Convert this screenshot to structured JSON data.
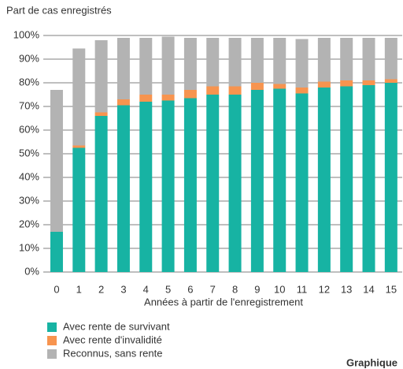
{
  "chart_data": {
    "type": "stacked_bar",
    "y_label": "Part de cas enregistrés",
    "x_label": "Années à partir de l'enregistrement",
    "caption": "Graphique",
    "categories": [
      "0",
      "1",
      "2",
      "3",
      "4",
      "5",
      "6",
      "7",
      "8",
      "9",
      "10",
      "11",
      "12",
      "13",
      "14",
      "15"
    ],
    "series": [
      {
        "name": "Avec rente de survivant",
        "color": "#17b3a3",
        "values": [
          17,
          52.5,
          66,
          70.5,
          72,
          72.5,
          73.5,
          75,
          75,
          77,
          77.5,
          75.5,
          78,
          78.5,
          79,
          80
        ]
      },
      {
        "name": "Avec rente d'invalidité",
        "color": "#f7944f",
        "values": [
          0,
          1,
          1.5,
          2.5,
          3,
          2.5,
          3.5,
          3.5,
          3.5,
          3,
          2,
          2.5,
          2.5,
          2.5,
          2,
          1.5
        ]
      },
      {
        "name": "Reconnus, sans rente",
        "color": "#b3b3b3",
        "values": [
          60,
          41,
          30.5,
          26,
          24,
          24.5,
          22,
          20.5,
          20.5,
          19,
          19.5,
          20.5,
          18.5,
          18,
          18,
          17.5
        ]
      }
    ],
    "ylim": [
      0,
      100
    ],
    "yticks": [
      {
        "value": 0,
        "label": "0%"
      },
      {
        "value": 10,
        "label": "10%"
      },
      {
        "value": 20,
        "label": "20%"
      },
      {
        "value": 30,
        "label": "30%"
      },
      {
        "value": 40,
        "label": "40%"
      },
      {
        "value": 50,
        "label": "50%"
      },
      {
        "value": 60,
        "label": "60%"
      },
      {
        "value": 70,
        "label": "70%"
      },
      {
        "value": 80,
        "label": "80%"
      },
      {
        "value": 90,
        "label": "90%"
      },
      {
        "value": 100,
        "label": "100%"
      }
    ],
    "grid": true
  }
}
